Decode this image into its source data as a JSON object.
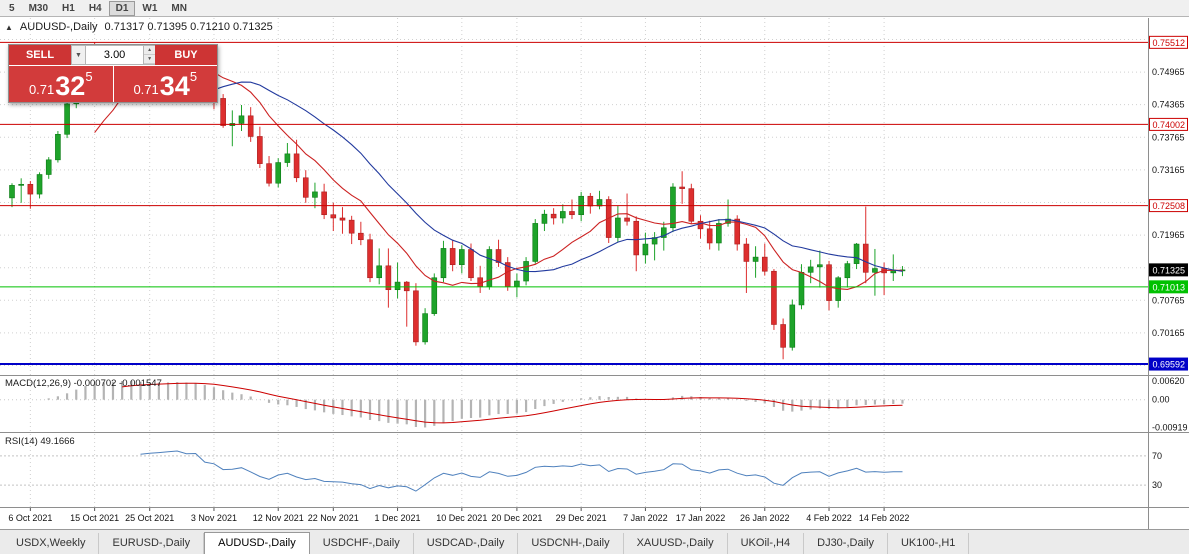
{
  "palette": {
    "grid": "#d0d0d0",
    "candle_up": "#1ea32a",
    "candle_down": "#dd2e2e",
    "candle_up_border": "#0c7a16",
    "candle_down_border": "#a81f1f",
    "macd_hist": "#b4b4b4",
    "macd_signal": "#cc0000",
    "rsi_line": "#4f81bd",
    "level_red": "#cc0000",
    "level_green": "#00c100",
    "level_blue": "#0000c8",
    "panel_red": "#cd3434",
    "current_price_box": "#000000"
  },
  "toolbar": {
    "timeframes": [
      "5",
      "M30",
      "H1",
      "H4",
      "D1",
      "W1",
      "MN"
    ],
    "active": "D1"
  },
  "chart": {
    "title": "AUDUSD-,Daily",
    "ohlc": "0.71317 0.71395 0.71210 0.71325"
  },
  "trade": {
    "sell_label": "SELL",
    "buy_label": "BUY",
    "volume": "3.00",
    "sell_price": {
      "prefix": "0.71",
      "big": "32",
      "sup": "5"
    },
    "buy_price": {
      "prefix": "0.71",
      "big": "34",
      "sup": "5"
    }
  },
  "indicators": {
    "macd_label": "MACD(12,26,9) -0.000702 -0.001547",
    "rsi_label": "RSI(14) 49.1666"
  },
  "chart_data": {
    "type": "candlestick",
    "symbol": "AUDUSD",
    "timeframe": "Daily",
    "ylim": [
      0.69409,
      0.7596
    ],
    "grid": {
      "start": 0.69565,
      "step": 0.006,
      "count": 11
    },
    "y_ticks": [
      "0.74965",
      "0.74365",
      "0.73765",
      "0.73165",
      "0.71965",
      "0.70765",
      "0.70165"
    ],
    "current_price": {
      "label": "0.71325",
      "value": 0.71325,
      "color": "#000000"
    },
    "hlines": [
      {
        "label": "0.75512",
        "value": 0.75512,
        "color": "#cc0000",
        "width": 1,
        "box": "outline"
      },
      {
        "label": "0.74002",
        "value": 0.74002,
        "color": "#cc0000",
        "width": 1,
        "box": "outline"
      },
      {
        "label": "0.72508",
        "value": 0.72508,
        "color": "#cc0000",
        "width": 1,
        "box": "outline"
      },
      {
        "label": "0.71013",
        "value": 0.71013,
        "color": "#00c100",
        "width": 1,
        "box": "solid"
      },
      {
        "label": "0.69592",
        "value": 0.69592,
        "color": "#0000c8",
        "width": 2,
        "box": "solid"
      }
    ],
    "moving_averages": [
      {
        "period": 10,
        "color": "#cc2222"
      },
      {
        "period": 21,
        "color": "#223a9e"
      }
    ],
    "macd": {
      "fast": 12,
      "slow": 26,
      "signal": 9
    },
    "rsi": {
      "period": 14
    },
    "macd_scale": [
      "0.00620",
      "0.00",
      "-0.00919"
    ],
    "rsi_scale": [
      "70",
      "30"
    ],
    "x_labels": [
      {
        "i": 2,
        "label": "6 Oct 2021"
      },
      {
        "i": 9,
        "label": "15 Oct 2021"
      },
      {
        "i": 15,
        "label": "25 Oct 2021"
      },
      {
        "i": 22,
        "label": "3 Nov 2021"
      },
      {
        "i": 29,
        "label": "12 Nov 2021"
      },
      {
        "i": 35,
        "label": "22 Nov 2021"
      },
      {
        "i": 42,
        "label": "1 Dec 2021"
      },
      {
        "i": 49,
        "label": "10 Dec 2021"
      },
      {
        "i": 55,
        "label": "20 Dec 2021"
      },
      {
        "i": 62,
        "label": "29 Dec 2021"
      },
      {
        "i": 69,
        "label": "7 Jan 2022"
      },
      {
        "i": 75,
        "label": "17 Jan 2022"
      },
      {
        "i": 82,
        "label": "26 Jan 2022"
      },
      {
        "i": 89,
        "label": "4 Feb 2022"
      },
      {
        "i": 95,
        "label": "14 Feb 2022"
      }
    ],
    "candles": [
      [
        "2021-10-04",
        0.7265,
        0.7292,
        0.7248,
        0.7288
      ],
      [
        "2021-10-05",
        0.7288,
        0.7301,
        0.7256,
        0.729
      ],
      [
        "2021-10-06",
        0.729,
        0.7296,
        0.7245,
        0.7272
      ],
      [
        "2021-10-07",
        0.7272,
        0.7312,
        0.7264,
        0.7308
      ],
      [
        "2021-10-08",
        0.7308,
        0.734,
        0.73,
        0.7335
      ],
      [
        "2021-10-11",
        0.7335,
        0.7388,
        0.733,
        0.7382
      ],
      [
        "2021-10-12",
        0.7382,
        0.744,
        0.7375,
        0.7438
      ],
      [
        "2021-10-13",
        0.7438,
        0.75,
        0.743,
        0.7496
      ],
      [
        "2021-10-14",
        0.7496,
        0.7546,
        0.748,
        0.753
      ],
      [
        "2021-10-15",
        0.753,
        0.7551,
        0.7498,
        0.7512
      ],
      [
        "2021-10-18",
        0.7512,
        0.7538,
        0.7486,
        0.7508
      ],
      [
        "2021-10-19",
        0.7508,
        0.7528,
        0.747,
        0.7482
      ],
      [
        "2021-10-20",
        0.7482,
        0.7522,
        0.7468,
        0.7515
      ],
      [
        "2021-10-21",
        0.7515,
        0.754,
        0.7488,
        0.7498
      ],
      [
        "2021-10-22",
        0.7498,
        0.7512,
        0.7462,
        0.7468
      ],
      [
        "2021-10-25",
        0.7468,
        0.75,
        0.745,
        0.749
      ],
      [
        "2021-10-26",
        0.749,
        0.7527,
        0.7478,
        0.7502
      ],
      [
        "2021-10-27",
        0.7502,
        0.7536,
        0.7488,
        0.7518
      ],
      [
        "2021-10-28",
        0.7518,
        0.7544,
        0.7502,
        0.7535
      ],
      [
        "2021-10-29",
        0.7535,
        0.754,
        0.749,
        0.7518
      ],
      [
        "2021-11-01",
        0.7518,
        0.7536,
        0.7482,
        0.752
      ],
      [
        "2021-11-02",
        0.752,
        0.7528,
        0.7452,
        0.7462
      ],
      [
        "2021-11-03",
        0.7462,
        0.7488,
        0.7428,
        0.7448
      ],
      [
        "2021-11-04",
        0.7448,
        0.7456,
        0.7394,
        0.7398
      ],
      [
        "2021-11-05",
        0.7398,
        0.7426,
        0.736,
        0.7402
      ],
      [
        "2021-11-08",
        0.7402,
        0.7436,
        0.7388,
        0.7416
      ],
      [
        "2021-11-09",
        0.7416,
        0.7432,
        0.7368,
        0.7378
      ],
      [
        "2021-11-10",
        0.7378,
        0.7396,
        0.732,
        0.7328
      ],
      [
        "2021-11-11",
        0.7328,
        0.7342,
        0.7286,
        0.7292
      ],
      [
        "2021-11-12",
        0.7292,
        0.7338,
        0.7284,
        0.733
      ],
      [
        "2021-11-15",
        0.733,
        0.7366,
        0.7322,
        0.7346
      ],
      [
        "2021-11-16",
        0.7346,
        0.7372,
        0.7294,
        0.7302
      ],
      [
        "2021-11-17",
        0.7302,
        0.7316,
        0.7256,
        0.7266
      ],
      [
        "2021-11-18",
        0.7266,
        0.7293,
        0.7246,
        0.7276
      ],
      [
        "2021-11-19",
        0.7276,
        0.7291,
        0.7226,
        0.7234
      ],
      [
        "2021-11-22",
        0.7234,
        0.7256,
        0.7204,
        0.7228
      ],
      [
        "2021-11-23",
        0.7228,
        0.7248,
        0.7199,
        0.7224
      ],
      [
        "2021-11-24",
        0.7224,
        0.7232,
        0.718,
        0.72
      ],
      [
        "2021-11-25",
        0.72,
        0.7221,
        0.7178,
        0.7188
      ],
      [
        "2021-11-26",
        0.7188,
        0.7199,
        0.711,
        0.7118
      ],
      [
        "2021-11-29",
        0.7118,
        0.7172,
        0.7106,
        0.714
      ],
      [
        "2021-11-30",
        0.714,
        0.7172,
        0.7063,
        0.7096
      ],
      [
        "2021-12-01",
        0.7096,
        0.7146,
        0.708,
        0.711
      ],
      [
        "2021-12-02",
        0.711,
        0.7112,
        0.7028,
        0.7094
      ],
      [
        "2021-12-03",
        0.7094,
        0.7108,
        0.6993,
        0.7
      ],
      [
        "2021-12-06",
        0.7,
        0.7062,
        0.6995,
        0.7052
      ],
      [
        "2021-12-07",
        0.7052,
        0.7126,
        0.7048,
        0.7118
      ],
      [
        "2021-12-08",
        0.7118,
        0.7186,
        0.711,
        0.7172
      ],
      [
        "2021-12-09",
        0.7172,
        0.7188,
        0.713,
        0.7142
      ],
      [
        "2021-12-10",
        0.7142,
        0.7178,
        0.7126,
        0.717
      ],
      [
        "2021-12-13",
        0.717,
        0.7181,
        0.7112,
        0.7118
      ],
      [
        "2021-12-14",
        0.7118,
        0.714,
        0.709,
        0.7102
      ],
      [
        "2021-12-15",
        0.7102,
        0.7176,
        0.7096,
        0.717
      ],
      [
        "2021-12-16",
        0.717,
        0.7188,
        0.7138,
        0.7146
      ],
      [
        "2021-12-17",
        0.7146,
        0.7156,
        0.7094,
        0.7102
      ],
      [
        "2021-12-20",
        0.7102,
        0.7126,
        0.7082,
        0.7112
      ],
      [
        "2021-12-21",
        0.7112,
        0.7156,
        0.7104,
        0.7148
      ],
      [
        "2021-12-22",
        0.7148,
        0.7226,
        0.7144,
        0.7218
      ],
      [
        "2021-12-23",
        0.7218,
        0.7243,
        0.7204,
        0.7235
      ],
      [
        "2021-12-24",
        0.7235,
        0.7246,
        0.7216,
        0.7228
      ],
      [
        "2021-12-27",
        0.7228,
        0.7253,
        0.7218,
        0.724
      ],
      [
        "2021-12-28",
        0.724,
        0.7262,
        0.7226,
        0.7234
      ],
      [
        "2021-12-29",
        0.7234,
        0.7276,
        0.7222,
        0.7268
      ],
      [
        "2021-12-30",
        0.7268,
        0.7274,
        0.7236,
        0.725
      ],
      [
        "2021-12-31",
        0.725,
        0.7278,
        0.7244,
        0.7262
      ],
      [
        "2022-01-03",
        0.7262,
        0.7268,
        0.7182,
        0.7192
      ],
      [
        "2022-01-04",
        0.7192,
        0.725,
        0.7184,
        0.7228
      ],
      [
        "2022-01-05",
        0.7228,
        0.7273,
        0.7214,
        0.7222
      ],
      [
        "2022-01-06",
        0.7222,
        0.7231,
        0.713,
        0.716
      ],
      [
        "2022-01-07",
        0.716,
        0.7201,
        0.7144,
        0.718
      ],
      [
        "2022-01-10",
        0.718,
        0.7202,
        0.715,
        0.7192
      ],
      [
        "2022-01-11",
        0.7192,
        0.7221,
        0.7168,
        0.721
      ],
      [
        "2022-01-12",
        0.721,
        0.7292,
        0.7202,
        0.7285
      ],
      [
        "2022-01-13",
        0.7285,
        0.7314,
        0.7254,
        0.7282
      ],
      [
        "2022-01-14",
        0.7282,
        0.7291,
        0.7218,
        0.7222
      ],
      [
        "2022-01-17",
        0.7222,
        0.7233,
        0.719,
        0.7208
      ],
      [
        "2022-01-18",
        0.7208,
        0.7223,
        0.717,
        0.7182
      ],
      [
        "2022-01-19",
        0.7182,
        0.7226,
        0.7168,
        0.7218
      ],
      [
        "2022-01-20",
        0.7218,
        0.7262,
        0.7212,
        0.7226
      ],
      [
        "2022-01-21",
        0.7226,
        0.7233,
        0.7168,
        0.718
      ],
      [
        "2022-01-24",
        0.718,
        0.7191,
        0.709,
        0.7148
      ],
      [
        "2022-01-25",
        0.7148,
        0.7176,
        0.7118,
        0.7156
      ],
      [
        "2022-01-26",
        0.7156,
        0.7181,
        0.7122,
        0.713
      ],
      [
        "2022-01-27",
        0.713,
        0.7134,
        0.7022,
        0.7032
      ],
      [
        "2022-01-28",
        0.7032,
        0.7043,
        0.6968,
        0.699
      ],
      [
        "2022-01-31",
        0.699,
        0.7078,
        0.6984,
        0.7068
      ],
      [
        "2022-02-01",
        0.7068,
        0.7143,
        0.706,
        0.7128
      ],
      [
        "2022-02-02",
        0.7128,
        0.7151,
        0.7108,
        0.7138
      ],
      [
        "2022-02-03",
        0.7138,
        0.7168,
        0.71,
        0.7142
      ],
      [
        "2022-02-04",
        0.7142,
        0.7149,
        0.7058,
        0.7076
      ],
      [
        "2022-02-07",
        0.7076,
        0.7121,
        0.7063,
        0.7118
      ],
      [
        "2022-02-08",
        0.7118,
        0.7149,
        0.71,
        0.7144
      ],
      [
        "2022-02-09",
        0.7144,
        0.7182,
        0.7134,
        0.718
      ],
      [
        "2022-02-10",
        0.718,
        0.7249,
        0.7108,
        0.7128
      ],
      [
        "2022-02-11",
        0.7128,
        0.7171,
        0.7085,
        0.7135
      ],
      [
        "2022-02-14",
        0.7135,
        0.7146,
        0.7086,
        0.7127
      ],
      [
        "2022-02-15",
        0.7127,
        0.7161,
        0.7112,
        0.7132
      ],
      [
        "2022-02-16",
        0.71317,
        0.71395,
        0.7121,
        0.71325
      ]
    ]
  },
  "tabs": {
    "active": "AUDUSD-,Daily",
    "items": [
      {
        "label": "USDX,Weekly"
      },
      {
        "label": "EURUSD-,Daily"
      },
      {
        "label": "AUDUSD-,Daily"
      },
      {
        "label": "USDCHF-,Daily"
      },
      {
        "label": "USDCAD-,Daily"
      },
      {
        "label": "USDCNH-,Daily"
      },
      {
        "label": "XAUUSD-,Daily"
      },
      {
        "label": "UKOil-,H4"
      },
      {
        "label": "DJ30-,Daily"
      },
      {
        "label": "UK100-,H1"
      }
    ]
  }
}
